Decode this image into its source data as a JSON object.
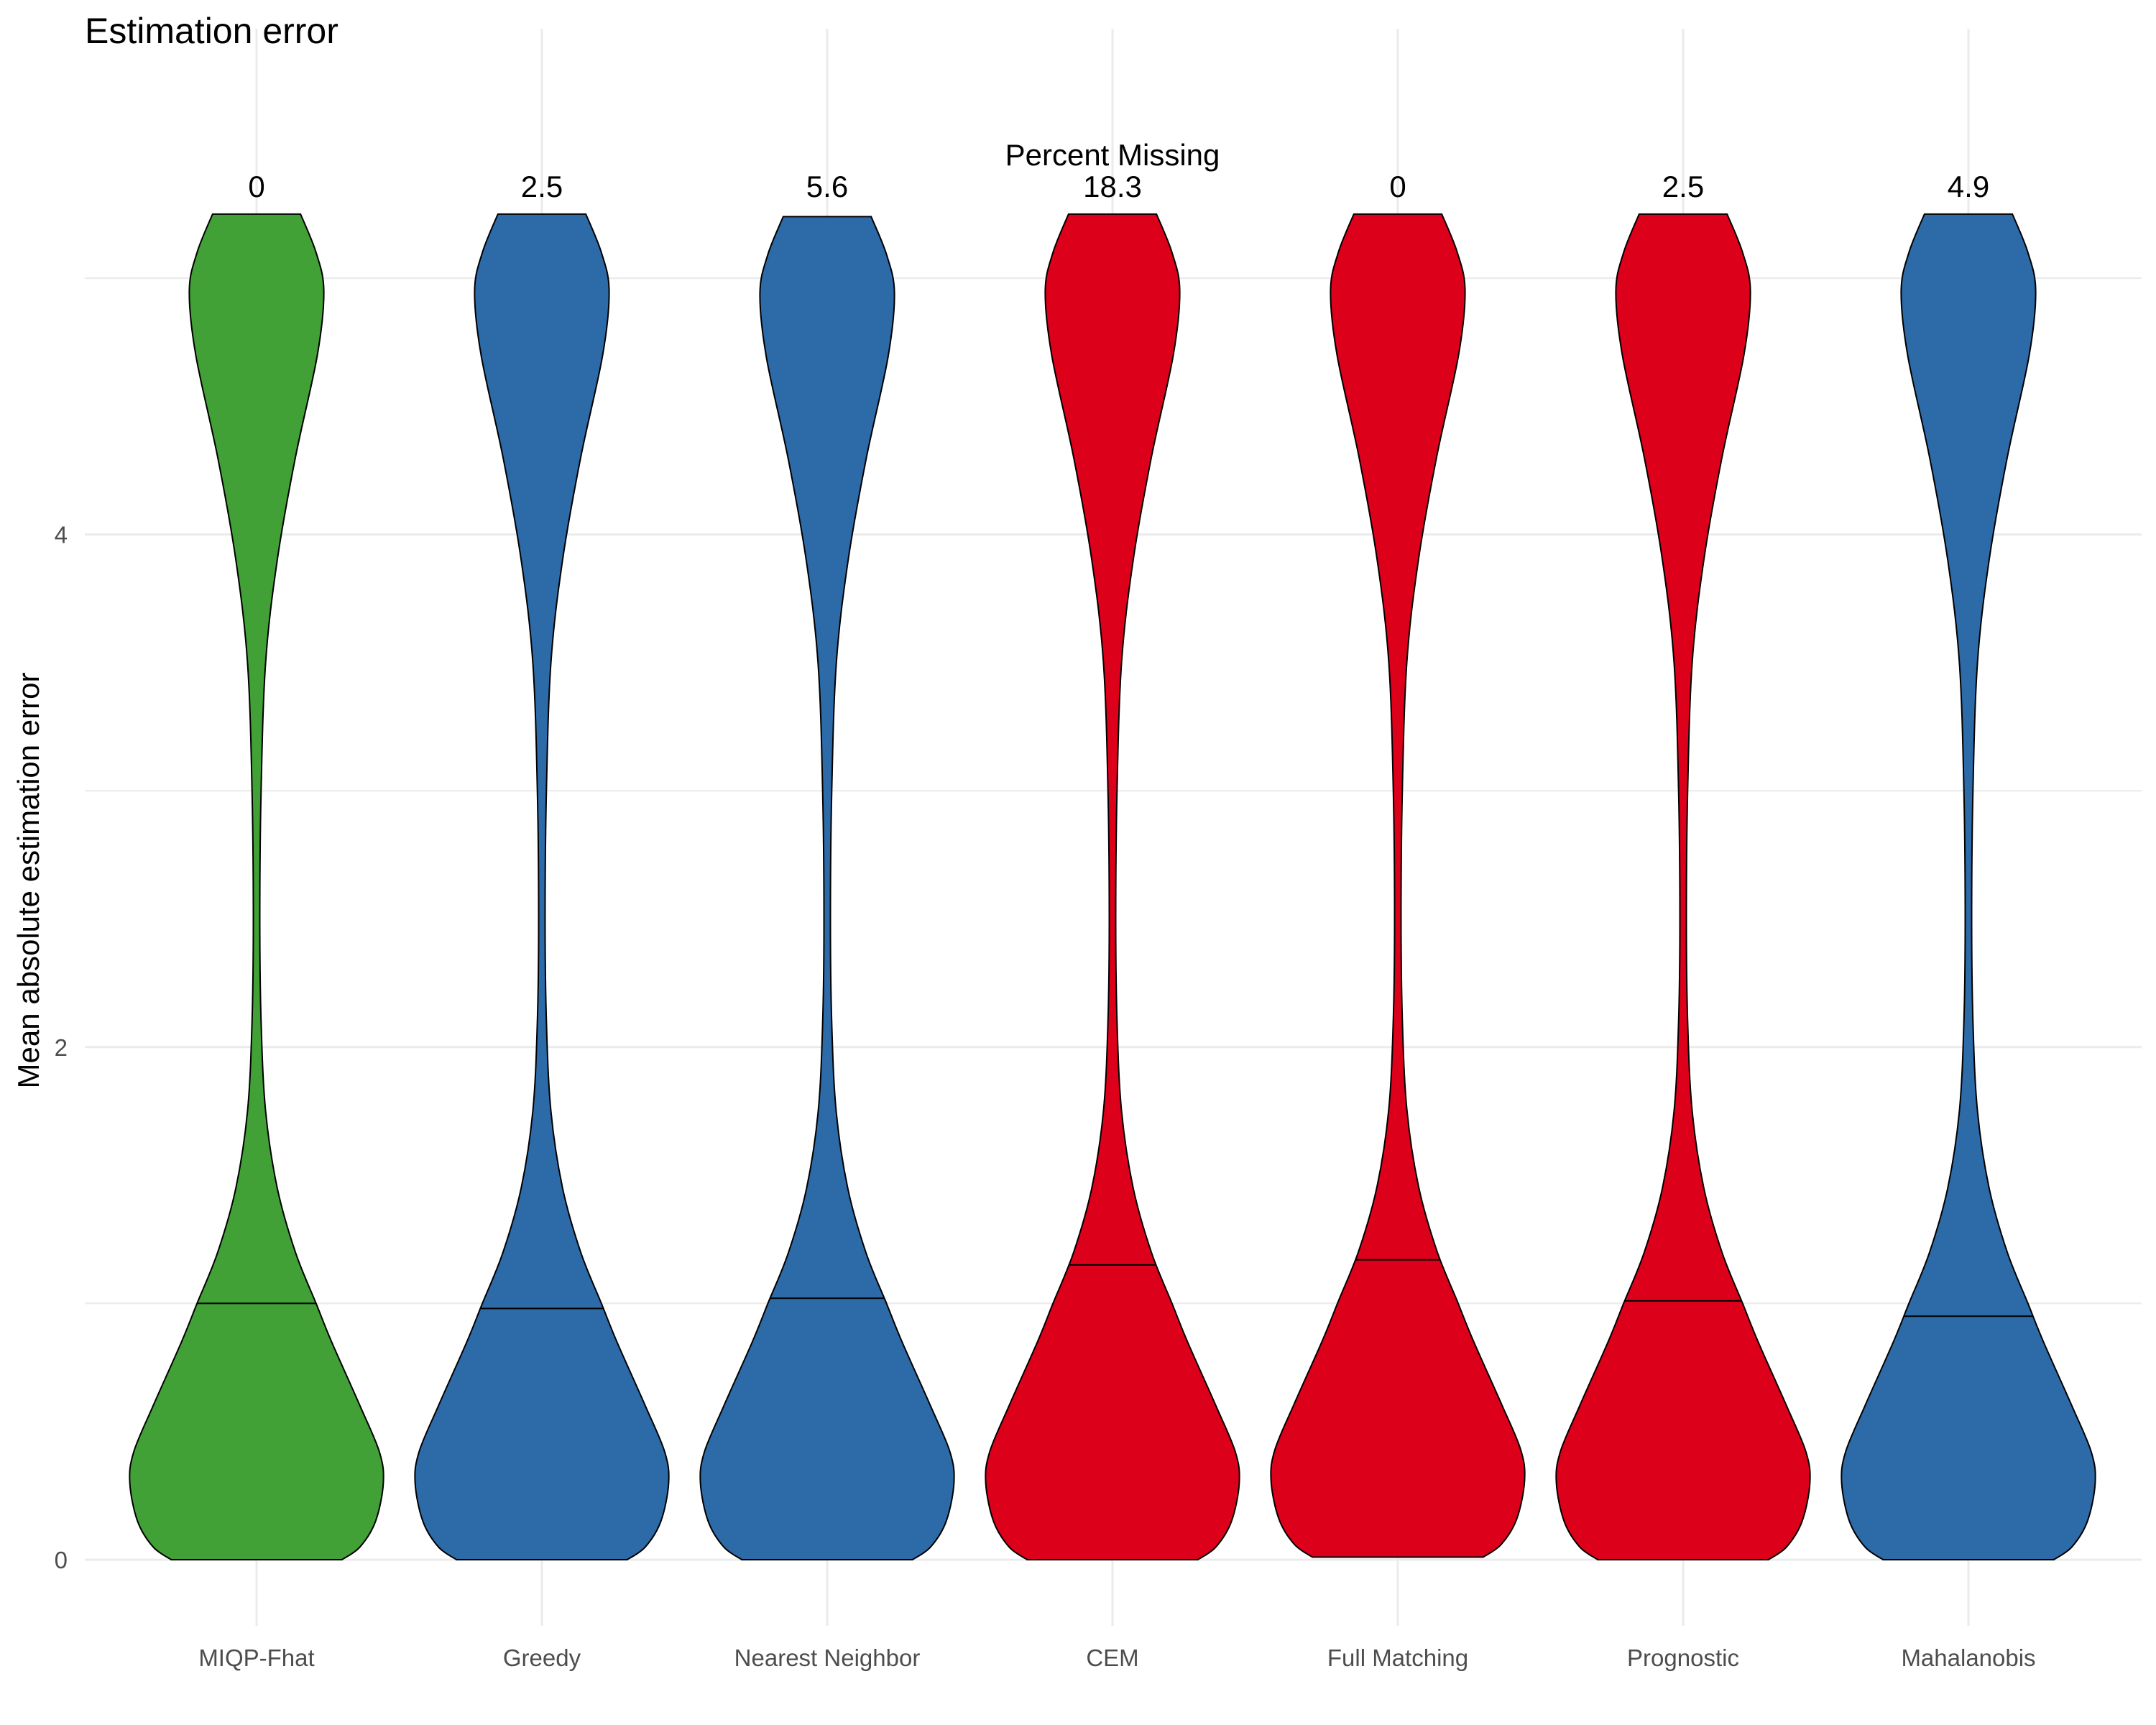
{
  "chart_data": {
    "type": "violin",
    "title": "Estimation error",
    "xlabel": "",
    "ylabel": "Mean absolute estimation error",
    "ylim": [
      -0.25,
      5.5
    ],
    "yticks": [
      0,
      2,
      4
    ],
    "grid": true,
    "legend": "none",
    "annotation_header": "Percent Missing",
    "categories": [
      "MIQP-Fhat",
      "Greedy",
      "Nearest Neighbor",
      "CEM",
      "Full Matching",
      "Prognostic",
      "Mahalanobis"
    ],
    "percent_missing": [
      "0",
      "2.5",
      "5.6",
      "18.3",
      "0",
      "2.5",
      "4.9"
    ],
    "medians": [
      1.0,
      0.98,
      1.02,
      1.15,
      1.17,
      1.01,
      0.95
    ],
    "ranges": [
      [
        0,
        5.25
      ],
      [
        0,
        5.25
      ],
      [
        0,
        5.24
      ],
      [
        0,
        5.25
      ],
      [
        0.01,
        5.25
      ],
      [
        0,
        5.25
      ],
      [
        0,
        5.25
      ]
    ],
    "colors": [
      "#41a036",
      "#2d6aa8",
      "#2d6aa8",
      "#dc001a",
      "#dc001a",
      "#dc001a",
      "#2d6aa8"
    ]
  }
}
